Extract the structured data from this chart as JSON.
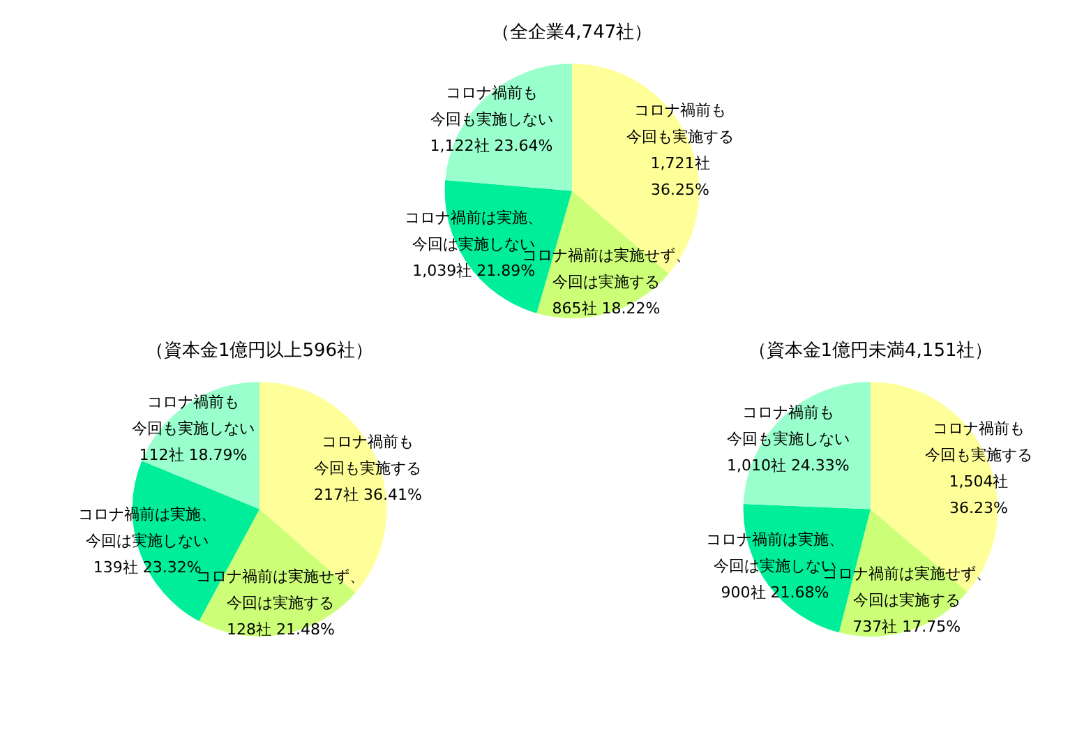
{
  "chart_data": [
    {
      "type": "pie",
      "title": "（全企業4,747社）",
      "categories": [
        "コロナ禍前も今回も実施する",
        "コロナ禍前は実施せず、今回は実施する",
        "コロナ禍前は実施、今回は実施しない",
        "コロナ禍前も今回も実施しない"
      ],
      "values": [
        1721,
        865,
        1039,
        1122
      ],
      "colors": [
        "#ffff99",
        "#ccff77",
        "#00ee99",
        "#99ffcc"
      ],
      "value_labels": [
        "1,721社\n36.25%",
        "865社 18.22%",
        "1,039社 21.89%",
        "1,122社 23.64%"
      ]
    },
    {
      "type": "pie",
      "title": "（資本金1億円以上596社）",
      "categories": [
        "コロナ禍前も今回も実施する",
        "コロナ禍前は実施せず、今回は実施する",
        "コロナ禍前は実施、今回は実施しない",
        "コロナ禍前も今回も実施しない"
      ],
      "values": [
        217,
        128,
        139,
        112
      ],
      "colors": [
        "#ffff99",
        "#ccff77",
        "#00ee99",
        "#99ffcc"
      ],
      "value_labels": [
        "217社 36.41%",
        "128社 21.48%",
        "139社 23.32%",
        "112社 18.79%"
      ]
    },
    {
      "type": "pie",
      "title": "（資本金1億円未満4,151社）",
      "categories": [
        "コロナ禍前も今回も実施する",
        "コロナ禍前は実施せず、今回は実施する",
        "コロナ禍前は実施、今回は実施しない",
        "コロナ禍前も今回も実施しない"
      ],
      "values": [
        1504,
        737,
        900,
        1010
      ],
      "colors": [
        "#ffff99",
        "#ccff77",
        "#00ee99",
        "#99ffcc"
      ],
      "value_labels": [
        "1,504社\n36.23%",
        "737社 17.75%",
        "900社 21.68%",
        "1,010社 24.33%"
      ]
    }
  ]
}
